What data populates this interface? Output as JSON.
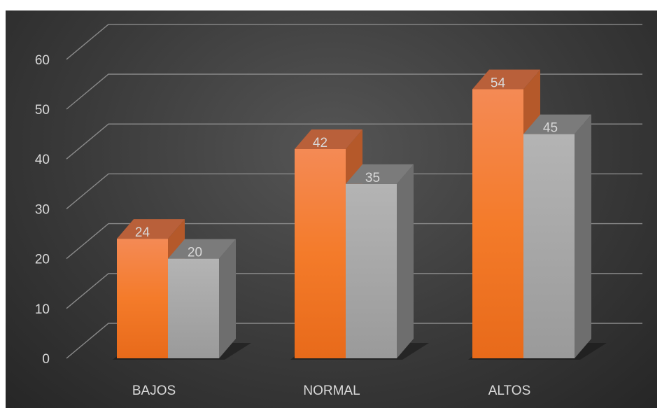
{
  "chart_data": {
    "type": "bar",
    "title": "",
    "xlabel": "",
    "ylabel": "",
    "categories": [
      "BAJOS",
      "NORMAL",
      "ALTOS"
    ],
    "series": [
      {
        "values": [
          24,
          42,
          54
        ],
        "color": "#f47b2a"
      },
      {
        "values": [
          20,
          35,
          45
        ],
        "color": "#a6a6a6"
      }
    ],
    "ylim": [
      0,
      60
    ],
    "yticks": [
      "0",
      "10",
      "20",
      "30",
      "40",
      "50",
      "60"
    ],
    "data_labels": [
      [
        "24",
        "42",
        "54"
      ],
      [
        "20",
        "35",
        "45"
      ]
    ],
    "grid": true,
    "three_d": true,
    "legend": "none"
  }
}
